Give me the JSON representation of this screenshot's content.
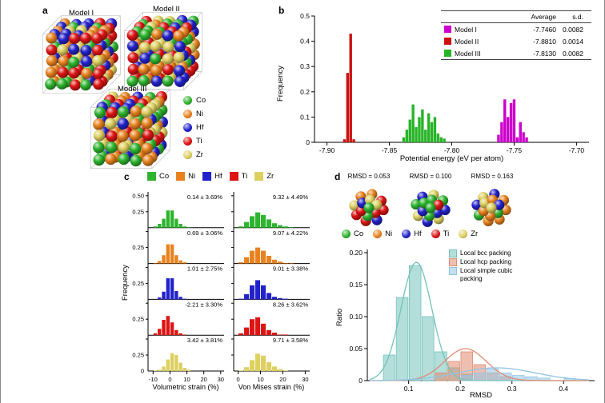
{
  "colors": {
    "co": "#2eb42e",
    "ni": "#e8821e",
    "hf": "#2222cc",
    "ti": "#dd1414",
    "zr": "#ddd060",
    "model_i": "#cc00cc",
    "model_ii": "#cc1111",
    "model_iii": "#28b428",
    "bcc": "#74c2bc",
    "hcp": "#e08a70",
    "sc": "#92c4e4"
  },
  "elements": [
    {
      "key": "co",
      "label": "Co"
    },
    {
      "key": "ni",
      "label": "Ni"
    },
    {
      "key": "hf",
      "label": "Hf"
    },
    {
      "key": "ti",
      "label": "Ti"
    },
    {
      "key": "zr",
      "label": "Zr"
    }
  ],
  "panel_a": {
    "label": "a",
    "models": [
      {
        "name": "Model I"
      },
      {
        "name": "Model II"
      },
      {
        "name": "Model III"
      }
    ]
  },
  "panel_b": {
    "label": "b",
    "xlabel": "Potential energy (eV per atom)",
    "ylabel": "Frequency",
    "table": {
      "col_average": "Average",
      "col_sd": "s.d.",
      "rows": [
        {
          "name": "Model I",
          "average": "-7.7460",
          "sd": "0.0082",
          "color_key": "model_i"
        },
        {
          "name": "Model II",
          "average": "-7.8810",
          "sd": "0.0014",
          "color_key": "model_ii"
        },
        {
          "name": "Model III",
          "average": "-7.8130",
          "sd": "0.0082",
          "color_key": "model_iii"
        }
      ]
    }
  },
  "panel_c": {
    "label": "c",
    "ylabel": "Frequency",
    "xlabel_left": "Volumetric strain (%)",
    "xlabel_right": "Von Mises strain (%)"
  },
  "panel_d": {
    "label": "d",
    "ylabel": "Ratio",
    "xlabel": "RMSD",
    "rmsd_labels": [
      "RMSD = 0.053",
      "RMSD = 0.100",
      "RMSD = 0.163"
    ],
    "legend": [
      {
        "label": "Local bcc packing",
        "color_key": "bcc"
      },
      {
        "label": "Local hcp packing",
        "color_key": "hcp"
      },
      {
        "label": "Local simple cubic packing",
        "color_key": "sc"
      }
    ]
  },
  "chart_data": [
    {
      "id": "potential_energy_histogram",
      "type": "bar",
      "title": "",
      "xlabel": "Potential energy (eV per atom)",
      "ylabel": "Frequency",
      "xlim": [
        -7.91,
        -7.69
      ],
      "ylim": [
        0,
        0.5
      ],
      "xticks": [
        -7.9,
        -7.85,
        -7.8,
        -7.75,
        -7.7
      ],
      "xtick_labels": [
        "-7.90",
        "-7.85",
        "-7.80",
        "-7.75",
        "-7.70"
      ],
      "yticks": [
        0,
        0.1,
        0.2,
        0.3,
        0.4,
        0.5
      ],
      "ytick_labels": [
        "0",
        "0.1",
        "0.2",
        "0.3",
        "0.4",
        "0.5"
      ],
      "bin_width": 0.0025,
      "legend_position": "top-right-table",
      "series": [
        {
          "name": "Model I",
          "color_key": "model_i",
          "average": -7.746,
          "sd": 0.0082,
          "x": [
            -7.7625,
            -7.76,
            -7.7575,
            -7.755,
            -7.7525,
            -7.75,
            -7.7475,
            -7.745,
            -7.7425,
            -7.74
          ],
          "values": [
            0.03,
            0.08,
            0.17,
            0.1,
            0.155,
            0.17,
            0.02,
            0.08,
            0.04,
            0.02
          ]
        },
        {
          "name": "Model II",
          "color_key": "model_ii",
          "average": -7.881,
          "sd": 0.0014,
          "x": [
            -7.886,
            -7.8835,
            -7.881,
            -7.8785
          ],
          "values": [
            0.012,
            0.275,
            0.43,
            0.012
          ]
        },
        {
          "name": "Model III",
          "color_key": "model_iii",
          "average": -7.813,
          "sd": 0.0082,
          "x": [
            -7.8385,
            -7.836,
            -7.8335,
            -7.831,
            -7.8285,
            -7.826,
            -7.8235,
            -7.821,
            -7.8185,
            -7.816,
            -7.8135,
            -7.811,
            -7.8085,
            -7.806
          ],
          "values": [
            0.02,
            0.05,
            0.09,
            0.15,
            0.06,
            0.1,
            0.13,
            0.05,
            0.115,
            0.08,
            0.1,
            0.035,
            0.02,
            0.015
          ]
        }
      ]
    },
    {
      "id": "atomic_strain_histograms",
      "type": "bar",
      "ylabel": "Frequency",
      "ylim": [
        0,
        0.56
      ],
      "ytick_labels": [
        "0.25",
        "0.50"
      ],
      "bin_width": 2.5,
      "columns": [
        {
          "xlabel": "Volumetric strain (%)",
          "xlim": [
            -13,
            32
          ],
          "xticks": [
            -10,
            0,
            10,
            20,
            30
          ],
          "xtick_labels": [
            "-10",
            "0",
            "10",
            "20",
            "30"
          ]
        },
        {
          "xlabel": "Von Mises strain (%)",
          "xlim": [
            -2,
            32
          ],
          "xticks": [
            0,
            10,
            20,
            30
          ],
          "xtick_labels": [
            "0",
            "10",
            "20",
            "30"
          ]
        }
      ],
      "rows": [
        {
          "element": "Co",
          "color_key": "co",
          "volumetric": {
            "annotation": "0.14 ± 3.69%",
            "mean": 0.14,
            "sd": 3.69,
            "x": [
              -8.75,
              -6.25,
              -3.75,
              -1.25,
              1.25,
              3.75,
              6.25,
              8.75,
              11.25
            ],
            "values": [
              0.02,
              0.06,
              0.14,
              0.27,
              0.27,
              0.14,
              0.06,
              0.02,
              0.01
            ]
          },
          "von_mises": {
            "annotation": "9.32 ± 4.49%",
            "mean": 9.32,
            "sd": 4.49,
            "x": [
              1.25,
              3.75,
              6.25,
              8.75,
              11.25,
              13.75,
              16.25,
              18.75,
              21.25,
              23.75
            ],
            "values": [
              0.02,
              0.09,
              0.18,
              0.24,
              0.2,
              0.13,
              0.07,
              0.04,
              0.02,
              0.01
            ]
          }
        },
        {
          "element": "Ni",
          "color_key": "ni",
          "volumetric": {
            "annotation": "0.69 ± 3.06%",
            "mean": 0.69,
            "sd": 3.06,
            "x": [
              -8.75,
              -6.25,
              -3.75,
              -1.25,
              1.25,
              3.75,
              6.25,
              8.75,
              11.25
            ],
            "values": [
              0.01,
              0.04,
              0.13,
              0.3,
              0.3,
              0.13,
              0.05,
              0.02,
              0.0
            ]
          },
          "von_mises": {
            "annotation": "9.07 ± 4.22%",
            "mean": 9.07,
            "sd": 4.22,
            "x": [
              1.25,
              3.75,
              6.25,
              8.75,
              11.25,
              13.75,
              16.25,
              18.75,
              21.25,
              23.75
            ],
            "values": [
              0.02,
              0.1,
              0.2,
              0.25,
              0.2,
              0.12,
              0.06,
              0.03,
              0.01,
              0.01
            ]
          }
        },
        {
          "element": "Hf",
          "color_key": "hf",
          "volumetric": {
            "annotation": "1.01 ± 2.75%",
            "mean": 1.01,
            "sd": 2.75,
            "x": [
              -8.75,
              -6.25,
              -3.75,
              -1.25,
              1.25,
              3.75,
              6.25,
              8.75,
              11.25
            ],
            "values": [
              0.0,
              0.03,
              0.12,
              0.33,
              0.33,
              0.13,
              0.04,
              0.01,
              0.0
            ]
          },
          "von_mises": {
            "annotation": "9.01 ± 3.38%",
            "mean": 9.01,
            "sd": 3.38,
            "x": [
              1.25,
              3.75,
              6.25,
              8.75,
              11.25,
              13.75,
              16.25,
              18.75,
              21.25,
              23.75
            ],
            "values": [
              0.01,
              0.08,
              0.22,
              0.3,
              0.22,
              0.1,
              0.04,
              0.02,
              0.01,
              0.0
            ]
          }
        },
        {
          "element": "Ti",
          "color_key": "ti",
          "volumetric": {
            "annotation": "-2.21 ± 3.30%",
            "mean": -2.21,
            "sd": 3.3,
            "x": [
              -8.75,
              -6.25,
              -3.75,
              -1.25,
              1.25,
              3.75,
              6.25,
              8.75,
              11.25
            ],
            "values": [
              0.03,
              0.1,
              0.24,
              0.3,
              0.2,
              0.08,
              0.03,
              0.01,
              0.0
            ]
          },
          "von_mises": {
            "annotation": "8.26 ± 3.62%",
            "mean": 8.26,
            "sd": 3.62,
            "x": [
              1.25,
              3.75,
              6.25,
              8.75,
              11.25,
              13.75,
              16.25,
              18.75,
              21.25,
              23.75
            ],
            "values": [
              0.03,
              0.12,
              0.25,
              0.28,
              0.18,
              0.08,
              0.04,
              0.01,
              0.01,
              0.0
            ]
          }
        },
        {
          "element": "Zr",
          "color_key": "zr",
          "volumetric": {
            "annotation": "3.42 ± 3.81%",
            "mean": 3.42,
            "sd": 3.81,
            "x": [
              -8.75,
              -6.25,
              -3.75,
              -1.25,
              1.25,
              3.75,
              6.25,
              8.75,
              11.25
            ],
            "values": [
              0.01,
              0.02,
              0.07,
              0.18,
              0.28,
              0.25,
              0.13,
              0.05,
              0.02
            ]
          },
          "von_mises": {
            "annotation": "9.71 ± 3.58%",
            "mean": 9.71,
            "sd": 3.58,
            "x": [
              1.25,
              3.75,
              6.25,
              8.75,
              11.25,
              13.75,
              16.25,
              18.75,
              21.25,
              23.75
            ],
            "values": [
              0.01,
              0.06,
              0.17,
              0.27,
              0.24,
              0.14,
              0.07,
              0.03,
              0.01,
              0.0
            ]
          }
        }
      ]
    },
    {
      "id": "rmsd_histogram",
      "type": "bar",
      "xlabel": "RMSD",
      "ylabel": "Ratio",
      "xlim": [
        0.02,
        0.46
      ],
      "ylim": [
        0,
        0.205
      ],
      "xticks": [
        0.1,
        0.2,
        0.3,
        0.4
      ],
      "xtick_labels": [
        "0.1",
        "0.2",
        "0.3",
        "0.4"
      ],
      "yticks": [
        0,
        0.05,
        0.1,
        0.15,
        0.2
      ],
      "ytick_labels": [
        "0",
        "0.05",
        "0.10",
        "0.15",
        "0.20"
      ],
      "bin_width": 0.025,
      "cluster_rmsd": [
        0.053,
        0.1,
        0.163
      ],
      "series": [
        {
          "name": "Local bcc packing",
          "color_key": "bcc",
          "x": [
            0.0625,
            0.0875,
            0.1125,
            0.1375,
            0.1625,
            0.1875,
            0.2125
          ],
          "values": [
            0.04,
            0.13,
            0.18,
            0.1,
            0.045,
            0.02,
            0.01
          ],
          "curve": {
            "mu": 0.115,
            "sigma": 0.03,
            "peak": 0.185
          }
        },
        {
          "name": "Local hcp packing",
          "color_key": "hcp",
          "x": [
            0.1625,
            0.1875,
            0.2125,
            0.2375,
            0.2625,
            0.2875
          ],
          "values": [
            0.012,
            0.03,
            0.045,
            0.025,
            0.012,
            0.006
          ],
          "curve": {
            "mu": 0.21,
            "sigma": 0.04,
            "peak": 0.05
          }
        },
        {
          "name": "Local simple cubic packing",
          "color_key": "sc",
          "x": [
            0.2125,
            0.2375,
            0.2625,
            0.2875,
            0.3125,
            0.3375,
            0.3625,
            0.4125
          ],
          "values": [
            0.008,
            0.012,
            0.018,
            0.012,
            0.008,
            0.006,
            0.004,
            0.003
          ],
          "curve": {
            "mu": 0.27,
            "sigma": 0.075,
            "peak": 0.02
          }
        }
      ]
    }
  ]
}
